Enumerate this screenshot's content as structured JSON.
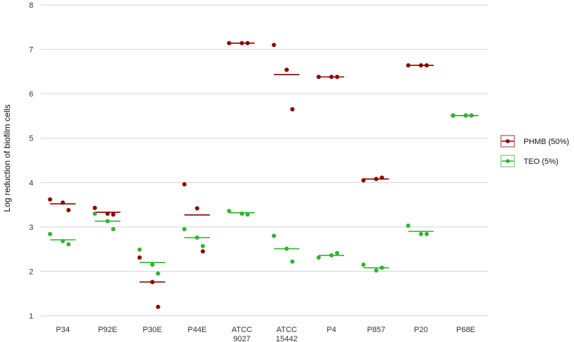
{
  "chart_data": {
    "type": "scatter",
    "title": "",
    "xlabel": "",
    "ylabel": "Log reduction of biofilm cells",
    "ylim": [
      1,
      8
    ],
    "yticks": [
      1,
      2,
      3,
      4,
      5,
      6,
      7,
      8
    ],
    "grid": "horizontal",
    "legend_position": "right",
    "categories": [
      [
        "P34"
      ],
      [
        "P92E"
      ],
      [
        "P30E"
      ],
      [
        "P44E"
      ],
      [
        "ATCC",
        "9027"
      ],
      [
        "ATCC",
        "15442"
      ],
      [
        "P4"
      ],
      [
        "P857"
      ],
      [
        "P20"
      ],
      [
        "P68E"
      ]
    ],
    "series": [
      {
        "name": "PHMB (50%)",
        "color": "#8b0000",
        "means": [
          3.52,
          3.33,
          1.76,
          3.27,
          7.14,
          6.43,
          6.38,
          4.08,
          6.64,
          5.51
        ],
        "points": [
          [
            3.62,
            3.55,
            3.38
          ],
          [
            3.43,
            3.3,
            3.28
          ],
          [
            2.31,
            1.76,
            1.2
          ],
          [
            3.96,
            3.42,
            2.45
          ],
          [
            7.14,
            7.14,
            7.14
          ],
          [
            7.1,
            6.54,
            5.65
          ],
          [
            6.38,
            6.38,
            6.38
          ],
          [
            4.05,
            4.08,
            4.11
          ],
          [
            6.64,
            6.64,
            6.64
          ],
          [
            5.51,
            5.51,
            5.51
          ]
        ]
      },
      {
        "name": "TEO (5%)",
        "color": "#2fb52f",
        "means": [
          2.71,
          3.13,
          2.2,
          2.76,
          3.32,
          2.51,
          2.36,
          2.08,
          2.9,
          5.51
        ],
        "points": [
          [
            2.84,
            2.68,
            2.61
          ],
          [
            3.3,
            3.13,
            2.95
          ],
          [
            2.49,
            2.15,
            1.95
          ],
          [
            2.95,
            2.76,
            2.57
          ],
          [
            3.36,
            3.3,
            3.28
          ],
          [
            2.8,
            2.51,
            2.22
          ],
          [
            2.31,
            2.36,
            2.41
          ],
          [
            2.15,
            2.02,
            2.08
          ],
          [
            3.03,
            2.84,
            2.84
          ],
          [
            5.51,
            5.51,
            5.51
          ]
        ]
      }
    ]
  }
}
